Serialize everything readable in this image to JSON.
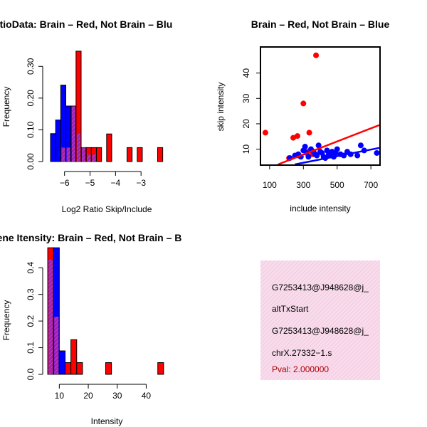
{
  "colors": {
    "red": "#ff0000",
    "blue": "#0000ff",
    "purple": "#9a24b0",
    "panel_bg": "#f8dcec",
    "panel_hatch": "#eeaacc",
    "pval": "#aa0000"
  },
  "chart_data": [
    {
      "id": "ratio_hist",
      "type": "bar",
      "title": "RatioData: Brain – Red, Not Brain – Blu",
      "xlabel": "Log2 Ratio Skip/Include",
      "ylabel": "Frequency",
      "xlim": [
        -6.55,
        -2.0
      ],
      "ylim": [
        0,
        0.35
      ],
      "x_ticks": [
        -6,
        -5,
        -4,
        -3
      ],
      "x_tick_labels": [
        "−6",
        "−5",
        "−4",
        "−3"
      ],
      "y_ticks": [
        0.0,
        0.1,
        0.2,
        0.3
      ],
      "y_tick_labels": [
        "0.00",
        "0.10",
        "0.20",
        "0.30"
      ],
      "bins": [
        {
          "x0": -6.55,
          "x1": -6.35,
          "blue": 0.088,
          "red": 0.0
        },
        {
          "x0": -6.35,
          "x1": -6.15,
          "blue": 0.131,
          "red": 0.0
        },
        {
          "x0": -6.15,
          "x1": -5.95,
          "blue": 0.241,
          "red": 0.044
        },
        {
          "x0": -5.95,
          "x1": -5.75,
          "blue": 0.175,
          "red": 0.044
        },
        {
          "x0": -5.75,
          "x1": -5.55,
          "blue": 0.175,
          "red": 0.174
        },
        {
          "x0": -5.55,
          "x1": -5.35,
          "blue": 0.088,
          "red": 0.348
        },
        {
          "x0": -5.35,
          "x1": -5.15,
          "blue": 0.044,
          "red": 0.044
        },
        {
          "x0": -5.15,
          "x1": -4.95,
          "blue": 0.022,
          "red": 0.044
        },
        {
          "x0": -4.95,
          "x1": -4.75,
          "blue": 0.022,
          "red": 0.044
        },
        {
          "x0": -4.75,
          "x1": -4.55,
          "blue": 0.0,
          "red": 0.044
        },
        {
          "x0": -4.35,
          "x1": -4.15,
          "blue": 0.0,
          "red": 0.087
        },
        {
          "x0": -3.55,
          "x1": -3.35,
          "blue": 0.0,
          "red": 0.044
        },
        {
          "x0": -3.15,
          "x1": -2.95,
          "blue": 0.0,
          "red": 0.044
        },
        {
          "x0": -2.35,
          "x1": -2.15,
          "blue": 0.0,
          "red": 0.044
        }
      ]
    },
    {
      "id": "scatter",
      "type": "scatter",
      "title": "Brain – Red, Not Brain – Blue",
      "xlabel": "include intensity",
      "ylabel": "skip intensity",
      "xlim": [
        50,
        750
      ],
      "ylim": [
        4,
        50
      ],
      "x_ticks": [
        100,
        300,
        500,
        700
      ],
      "x_tick_labels": [
        "100",
        "300",
        "500",
        "700"
      ],
      "y_ticks": [
        10,
        20,
        30,
        40
      ],
      "y_tick_labels": [
        "10",
        "20",
        "30",
        "40"
      ],
      "series": [
        {
          "name": "Brain",
          "color": "red",
          "x": [
            75,
            215,
            240,
            265,
            300,
            335,
            355,
            375,
            270,
            320
          ],
          "y": [
            16.5,
            6.5,
            14.5,
            15.2,
            28,
            16.5,
            8.0,
            47,
            7.5,
            9.0
          ]
        },
        {
          "name": "Not Brain",
          "color": "blue",
          "x": [
            220,
            250,
            270,
            285,
            300,
            310,
            320,
            330,
            345,
            360,
            370,
            380,
            390,
            400,
            410,
            420,
            430,
            440,
            450,
            460,
            470,
            480,
            490,
            500,
            520,
            540,
            560,
            580,
            620,
            640,
            660,
            735
          ],
          "y": [
            6.5,
            7.5,
            8.0,
            7.0,
            9.5,
            11.0,
            8.5,
            7.0,
            10.0,
            9.0,
            8.0,
            7.5,
            11.5,
            9.0,
            8.5,
            7.0,
            6.5,
            9.5,
            8.0,
            7.5,
            9.0,
            7.0,
            8.5,
            10.0,
            8.0,
            7.5,
            9.0,
            8.0,
            7.5,
            11.5,
            9.5,
            8.5
          ]
        }
      ],
      "fit_lines": [
        {
          "color": "red",
          "x": [
            150,
            750
          ],
          "y": [
            4.0,
            19.5
          ]
        },
        {
          "color": "blue",
          "x": [
            250,
            750
          ],
          "y": [
            4.0,
            10.5
          ]
        }
      ]
    },
    {
      "id": "intensity_hist",
      "type": "bar",
      "title": "Gene Itensity: Brain – Red, Not Brain – B",
      "xlabel": "Intensity",
      "ylabel": "Frequency",
      "xlim": [
        5,
        48
      ],
      "ylim": [
        0,
        0.47
      ],
      "x_ticks": [
        10,
        20,
        30,
        40
      ],
      "x_tick_labels": [
        "10",
        "20",
        "30",
        "40"
      ],
      "y_ticks": [
        0.0,
        0.1,
        0.2,
        0.3,
        0.4
      ],
      "y_tick_labels": [
        "0.0",
        "0.1",
        "0.2",
        "0.3",
        "0.4"
      ],
      "bins": [
        {
          "x0": 6,
          "x1": 8,
          "blue": 0.43,
          "red": 0.475
        },
        {
          "x0": 8,
          "x1": 10,
          "blue": 0.475,
          "red": 0.216
        },
        {
          "x0": 10,
          "x1": 12,
          "blue": 0.088,
          "red": 0.0
        },
        {
          "x0": 12,
          "x1": 14,
          "blue": 0.0,
          "red": 0.044
        },
        {
          "x0": 14,
          "x1": 16,
          "blue": 0.0,
          "red": 0.13
        },
        {
          "x0": 16,
          "x1": 18,
          "blue": 0.0,
          "red": 0.044
        },
        {
          "x0": 26,
          "x1": 28,
          "blue": 0.0,
          "red": 0.044
        },
        {
          "x0": 44,
          "x1": 46,
          "blue": 0.0,
          "red": 0.044
        }
      ]
    }
  ],
  "info_panel": {
    "lines": [
      "G7253413@J948628@j_",
      "altTxStart",
      "G7253413@J948628@j_",
      "chrX.27332−1.s"
    ],
    "pval": "Pval: 2.000000"
  }
}
